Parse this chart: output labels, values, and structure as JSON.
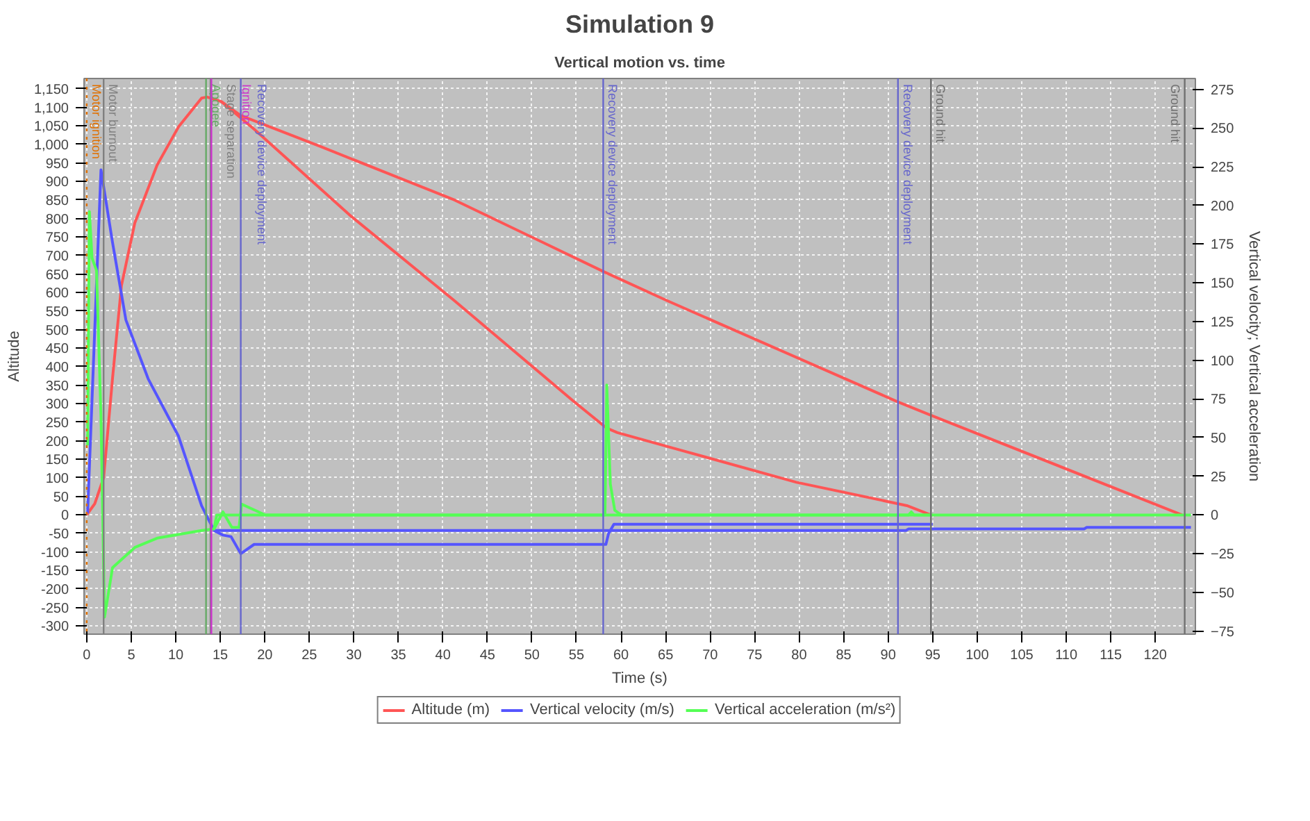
{
  "chart_data": {
    "type": "line",
    "title": "Simulation 9",
    "subtitle": "Vertical motion vs. time",
    "xlabel": "Time (s)",
    "ylabel": "Altitude",
    "y2label": "Vertical velocity; Vertical acceleration",
    "xlim": [
      -0.3,
      124.5
    ],
    "xticks": [
      0,
      5,
      10,
      15,
      20,
      25,
      30,
      35,
      40,
      45,
      50,
      55,
      60,
      65,
      70,
      75,
      80,
      85,
      90,
      95,
      100,
      105,
      110,
      115,
      120
    ],
    "ylim": [
      -322,
      1178
    ],
    "yticks": [
      {
        "value": -300,
        "label": "-300"
      },
      {
        "value": -250,
        "label": "-250"
      },
      {
        "value": -200,
        "label": "-200"
      },
      {
        "value": -150,
        "label": "-150"
      },
      {
        "value": -100,
        "label": "-100"
      },
      {
        "value": -50,
        "label": "-50"
      },
      0,
      50,
      100,
      150,
      200,
      250,
      300,
      350,
      400,
      450,
      500,
      550,
      600,
      650,
      700,
      750,
      800,
      850,
      900,
      950,
      {
        "value": 1000,
        "label": "1,000"
      },
      {
        "value": 1050,
        "label": "1,050"
      },
      {
        "value": 1100,
        "label": "1,100"
      },
      {
        "value": 1150,
        "label": "1,150"
      }
    ],
    "y2lim": [
      -77,
      282
    ],
    "y2ticks": [
      -75,
      -50,
      -25,
      0,
      25,
      50,
      75,
      100,
      125,
      150,
      175,
      200,
      225,
      250,
      275
    ],
    "grid": true,
    "legend": "bottom",
    "line_style": "solid",
    "marker": "none",
    "series": [
      {
        "name": "Altitude (m)",
        "color": "#ff5555",
        "x": [
          0,
          0.9,
          1.9,
          2.9,
          3.9,
          5.4,
          7.9,
          10.3,
          12.9,
          13.5,
          15.1,
          17.3,
          26.3,
          41.3,
          58.1,
          65.2,
          91,
          94.8,
          123
        ],
        "values": [
          0,
          30,
          100,
          369,
          619,
          788,
          944,
          1047,
          1125,
          1128,
          1116,
          1078,
          994,
          850,
          656,
          578,
          306,
          269,
          0
        ]
      },
      {
        "color": "#ff5555",
        "x": [
          15.1,
          18.8,
          29.7,
          41.3,
          54.7,
          58.4,
          59.6,
          66.2,
          79.7,
          92.1,
          94.8
        ],
        "values": [
          1116,
          1041,
          806,
          578,
          306,
          234,
          222,
          178,
          88,
          25,
          0
        ]
      },
      {
        "name": "Vertical velocity (m/s)",
        "color": "#5555ff",
        "axis": "y2",
        "x": [
          0.1,
          1.6,
          2.9,
          4.4,
          6.9,
          10.3,
          12.9,
          14.3,
          15.3,
          16.2,
          17.3,
          18.8,
          58.3,
          58.6,
          59.2,
          95
        ],
        "values": [
          1,
          223,
          176,
          126,
          88,
          51,
          6,
          -10,
          -13,
          -14,
          -25,
          -19,
          -19,
          -12,
          -6,
          -6
        ]
      },
      {
        "color": "#5555ff",
        "axis": "y2",
        "x": [
          14.3,
          92,
          92.3,
          112,
          112.3,
          124
        ],
        "values": [
          -10,
          -10,
          -9,
          -9,
          -8,
          -8
        ]
      },
      {
        "name": "Vertical acceleration (m/s²)",
        "color": "#55ff55",
        "axis": "y2",
        "x": [
          0.1,
          0.3,
          0.6,
          1.1,
          1.6,
          2.0,
          2.9,
          5.4,
          7.9,
          12.9,
          14.3,
          15.3,
          16.3,
          17.1,
          17.4,
          19.3,
          20,
          58.2,
          58.4,
          58.8,
          59.3,
          60,
          92.3,
          92.6,
          92.9,
          95
        ],
        "values": [
          45,
          196,
          166,
          158,
          64,
          -66,
          -34,
          -21,
          -15,
          -10,
          -9,
          2,
          -8,
          -8,
          7,
          2,
          0,
          0,
          84,
          20,
          3,
          0,
          0,
          2,
          0,
          0
        ]
      },
      {
        "color": "#55ff55",
        "axis": "y2",
        "x": [
          14.3,
          14.6,
          124
        ],
        "values": [
          -9,
          0,
          0
        ]
      }
    ],
    "ref_lines": [
      {
        "axis": "x",
        "value": 0,
        "label": "Motor ignition",
        "color": "#e07000",
        "line_style": "dotted"
      },
      {
        "axis": "x",
        "value": 1.9,
        "label": "Motor burnout",
        "color": "#808080",
        "line_style": "solid"
      },
      {
        "axis": "x",
        "value": 13.4,
        "label": "Apogee",
        "color": "#66aa66",
        "line_style": "solid"
      },
      {
        "axis": "x",
        "value": 13.9,
        "label": "Stage separation",
        "color": "#808080",
        "line_style": "solid"
      },
      {
        "axis": "x",
        "value": 14.0,
        "label": "Ignition",
        "color": "#cc33cc",
        "line_style": "solid"
      },
      {
        "axis": "x",
        "value": 17.3,
        "label": "Recovery device deployment",
        "color": "#6666cc",
        "line_style": "solid"
      },
      {
        "axis": "x",
        "value": 58.0,
        "label": "Recovery device deployment",
        "color": "#6666cc",
        "line_style": "solid"
      },
      {
        "axis": "x",
        "value": 91.1,
        "label": "Recovery device deployment",
        "color": "#6666cc",
        "line_style": "solid"
      },
      {
        "axis": "x",
        "value": 94.8,
        "label": "Ground hit",
        "color": "#707070",
        "line_style": "solid"
      },
      {
        "axis": "x",
        "value": 123.3,
        "label": "Ground hit",
        "color": "#707070",
        "line_style": "solid"
      }
    ]
  }
}
